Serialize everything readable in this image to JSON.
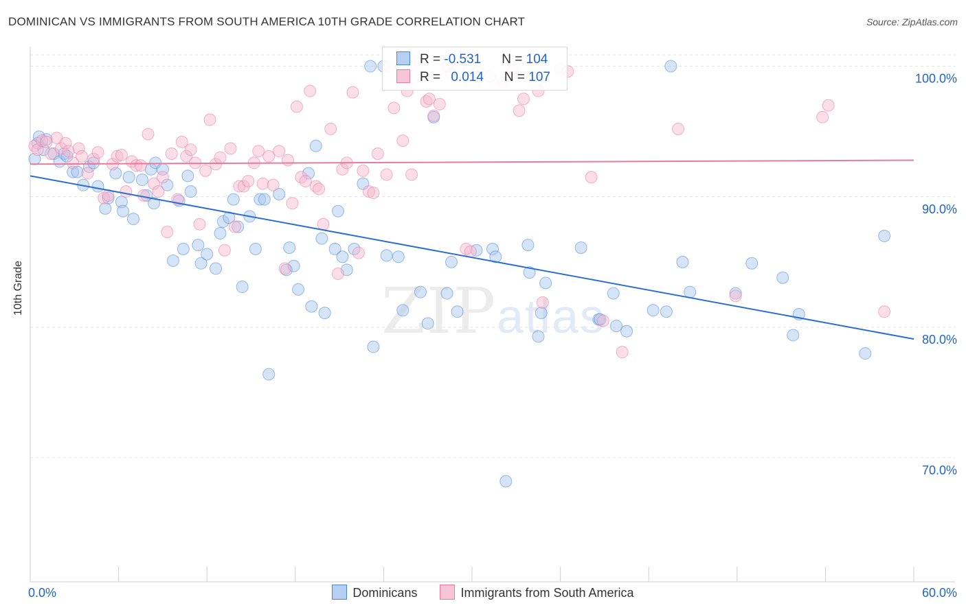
{
  "header": {
    "title": "DOMINICAN VS IMMIGRANTS FROM SOUTH AMERICA 10TH GRADE CORRELATION CHART",
    "source": "Source: ZipAtlas.com"
  },
  "watermark": {
    "zip": "ZIP",
    "atlas": "atlas"
  },
  "colors": {
    "dominicans": "#4a86d8",
    "immigrants": "#e87aa0",
    "dominicans_fill": "rgba(164,196,240,0.45)",
    "immigrants_fill": "rgba(246,182,204,0.45)",
    "value_text": "#1f64c8",
    "grid": "#e3e3e3"
  },
  "legend_top": {
    "rows": [
      {
        "r_label": "R = ",
        "r_value": "-0.531",
        "n_label": "N = ",
        "n_value": "104"
      },
      {
        "r_label": "R = ",
        "r_value": "0.014",
        "n_label": "N = ",
        "n_value": "107"
      }
    ]
  },
  "legend_bottom": {
    "items": [
      {
        "label": "Dominicans"
      },
      {
        "label": "Immigrants from South America"
      }
    ]
  },
  "chart_data": {
    "type": "scatter",
    "title": "DOMINICAN VS IMMIGRANTS FROM SOUTH AMERICA 10TH GRADE CORRELATION CHART",
    "xlabel": "",
    "ylabel": "10th Grade",
    "xlim": [
      0,
      60
    ],
    "ylim": [
      60.5,
      101.5
    ],
    "x_tick_labels": [
      {
        "value": 0,
        "label": "0.0%"
      },
      {
        "value": 60,
        "label": "60.0%"
      }
    ],
    "y_tick_labels": [
      {
        "value": 100,
        "label": "100.0%"
      },
      {
        "value": 90,
        "label": "90.0%"
      },
      {
        "value": 80,
        "label": "80.0%"
      },
      {
        "value": 70,
        "label": "70.0%"
      }
    ],
    "x_minor_ticks": [
      0,
      6,
      12,
      18,
      24,
      30,
      36,
      42,
      48,
      54,
      60
    ],
    "grid": true,
    "legend_position": "top-center",
    "series": [
      {
        "name": "Dominicans",
        "stats": {
          "R": -0.531,
          "N": 104
        },
        "trend": {
          "x": [
            0,
            60
          ],
          "y": [
            91.6,
            79.1
          ]
        },
        "points": [
          [
            0.3,
            92.9
          ],
          [
            0.5,
            94.1
          ],
          [
            0.6,
            94.6
          ],
          [
            0.9,
            93.6
          ],
          [
            1.1,
            94.4
          ],
          [
            1.6,
            93.3
          ],
          [
            2.0,
            92.7
          ],
          [
            2.3,
            93.3
          ],
          [
            2.5,
            93.1
          ],
          [
            2.9,
            91.9
          ],
          [
            3.2,
            91.9
          ],
          [
            3.6,
            90.9
          ],
          [
            4.0,
            92.3
          ],
          [
            4.3,
            92.6
          ],
          [
            4.6,
            90.8
          ],
          [
            5.1,
            89.1
          ],
          [
            5.3,
            89.9
          ],
          [
            5.8,
            91.8
          ],
          [
            6.2,
            89.6
          ],
          [
            6.3,
            88.9
          ],
          [
            6.7,
            91.5
          ],
          [
            7.0,
            88.3
          ],
          [
            7.6,
            91.3
          ],
          [
            7.9,
            90.1
          ],
          [
            8.2,
            92.1
          ],
          [
            8.4,
            89.5
          ],
          [
            8.5,
            92.6
          ],
          [
            9.0,
            92.1
          ],
          [
            9.3,
            90.9
          ],
          [
            9.7,
            85.1
          ],
          [
            10.1,
            89.7
          ],
          [
            10.4,
            86.0
          ],
          [
            10.7,
            91.6
          ],
          [
            10.9,
            90.4
          ],
          [
            11.4,
            86.3
          ],
          [
            11.6,
            84.9
          ],
          [
            12.0,
            85.6
          ],
          [
            12.6,
            84.5
          ],
          [
            12.9,
            87.2
          ],
          [
            13.1,
            88.1
          ],
          [
            13.5,
            88.4
          ],
          [
            13.8,
            89.8
          ],
          [
            14.1,
            87.7
          ],
          [
            14.4,
            83.1
          ],
          [
            14.9,
            88.5
          ],
          [
            15.3,
            86.0
          ],
          [
            15.6,
            89.8
          ],
          [
            15.9,
            89.8
          ],
          [
            16.2,
            76.4
          ],
          [
            16.9,
            90.2
          ],
          [
            17.4,
            84.4
          ],
          [
            17.6,
            86.1
          ],
          [
            17.9,
            84.7
          ],
          [
            18.2,
            82.9
          ],
          [
            18.9,
            91.8
          ],
          [
            19.1,
            81.6
          ],
          [
            19.4,
            93.9
          ],
          [
            19.8,
            86.8
          ],
          [
            20.0,
            81.1
          ],
          [
            20.7,
            86.0
          ],
          [
            20.9,
            88.9
          ],
          [
            21.2,
            85.4
          ],
          [
            21.5,
            84.4
          ],
          [
            22.0,
            86.0
          ],
          [
            22.6,
            91.0
          ],
          [
            23.1,
            100.0
          ],
          [
            23.3,
            78.5
          ],
          [
            24.0,
            100.0
          ],
          [
            24.2,
            85.5
          ],
          [
            25.0,
            85.4
          ],
          [
            25.3,
            81.3
          ],
          [
            26.5,
            82.7
          ],
          [
            27.0,
            80.3
          ],
          [
            27.4,
            96.1
          ],
          [
            28.3,
            82.6
          ],
          [
            28.6,
            85.0
          ],
          [
            29.0,
            81.2
          ],
          [
            30.3,
            85.9
          ],
          [
            31.4,
            86.0
          ],
          [
            31.6,
            85.4
          ],
          [
            32.3,
            68.2
          ],
          [
            33.8,
            86.3
          ],
          [
            33.9,
            84.2
          ],
          [
            34.5,
            79.3
          ],
          [
            34.7,
            81.1
          ],
          [
            35.0,
            83.4
          ],
          [
            37.4,
            86.1
          ],
          [
            38.6,
            80.6
          ],
          [
            38.7,
            80.6
          ],
          [
            39.6,
            82.6
          ],
          [
            39.8,
            80.1
          ],
          [
            40.5,
            79.7
          ],
          [
            42.3,
            81.3
          ],
          [
            43.2,
            81.2
          ],
          [
            43.5,
            100.0
          ],
          [
            44.3,
            85.0
          ],
          [
            44.8,
            82.7
          ],
          [
            47.9,
            82.6
          ],
          [
            49.0,
            84.9
          ],
          [
            51.1,
            83.8
          ],
          [
            51.8,
            79.4
          ],
          [
            52.2,
            81.0
          ],
          [
            56.7,
            78.0
          ],
          [
            58.0,
            87.0
          ]
        ]
      },
      {
        "name": "Immigrants from South America",
        "stats": {
          "R": 0.014,
          "N": 107
        },
        "trend": {
          "x": [
            0,
            60
          ],
          "y": [
            92.5,
            92.8
          ]
        },
        "points": [
          [
            0.3,
            93.9
          ],
          [
            0.5,
            93.6
          ],
          [
            0.8,
            94.3
          ],
          [
            1.1,
            94.2
          ],
          [
            1.4,
            93.3
          ],
          [
            1.8,
            94.5
          ],
          [
            2.1,
            93.7
          ],
          [
            2.4,
            94.1
          ],
          [
            2.6,
            93.5
          ],
          [
            2.9,
            92.6
          ],
          [
            3.3,
            93.7
          ],
          [
            3.5,
            93.1
          ],
          [
            3.9,
            91.8
          ],
          [
            4.3,
            92.9
          ],
          [
            4.6,
            93.4
          ],
          [
            5.0,
            89.9
          ],
          [
            5.3,
            90.1
          ],
          [
            5.6,
            92.5
          ],
          [
            5.9,
            93.1
          ],
          [
            6.2,
            93.2
          ],
          [
            6.5,
            90.4
          ],
          [
            6.9,
            92.7
          ],
          [
            7.2,
            92.4
          ],
          [
            7.5,
            92.4
          ],
          [
            7.7,
            90.1
          ],
          [
            8.0,
            94.8
          ],
          [
            8.4,
            91.0
          ],
          [
            8.7,
            90.4
          ],
          [
            9.0,
            91.5
          ],
          [
            9.3,
            87.3
          ],
          [
            9.6,
            93.3
          ],
          [
            10.0,
            89.8
          ],
          [
            10.3,
            94.2
          ],
          [
            10.6,
            93.1
          ],
          [
            10.9,
            93.6
          ],
          [
            11.2,
            92.6
          ],
          [
            11.5,
            87.9
          ],
          [
            11.9,
            92.0
          ],
          [
            12.2,
            95.9
          ],
          [
            12.6,
            92.5
          ],
          [
            12.9,
            93.0
          ],
          [
            13.2,
            85.9
          ],
          [
            13.6,
            93.7
          ],
          [
            13.9,
            87.7
          ],
          [
            14.2,
            90.8
          ],
          [
            14.5,
            90.8
          ],
          [
            14.8,
            91.2
          ],
          [
            15.2,
            92.6
          ],
          [
            15.5,
            93.5
          ],
          [
            15.8,
            91.0
          ],
          [
            16.2,
            93.1
          ],
          [
            16.5,
            90.9
          ],
          [
            16.9,
            93.5
          ],
          [
            17.3,
            84.5
          ],
          [
            17.5,
            92.8
          ],
          [
            17.8,
            89.5
          ],
          [
            18.1,
            96.9
          ],
          [
            18.4,
            91.5
          ],
          [
            18.7,
            91.2
          ],
          [
            19.0,
            98.1
          ],
          [
            19.4,
            90.8
          ],
          [
            19.6,
            90.6
          ],
          [
            19.9,
            87.9
          ],
          [
            20.4,
            95.2
          ],
          [
            20.9,
            84.1
          ],
          [
            21.2,
            92.1
          ],
          [
            21.5,
            92.6
          ],
          [
            21.9,
            98.0
          ],
          [
            22.3,
            85.7
          ],
          [
            22.6,
            92.0
          ],
          [
            23.0,
            90.4
          ],
          [
            23.3,
            90.3
          ],
          [
            23.6,
            93.3
          ],
          [
            24.2,
            91.7
          ],
          [
            24.4,
            100.0
          ],
          [
            24.7,
            96.8
          ],
          [
            25.3,
            94.3
          ],
          [
            25.6,
            98.1
          ],
          [
            25.9,
            91.7
          ],
          [
            26.4,
            100.0
          ],
          [
            26.9,
            97.3
          ],
          [
            27.1,
            97.5
          ],
          [
            27.4,
            96.2
          ],
          [
            27.8,
            97.1
          ],
          [
            28.3,
            100.0
          ],
          [
            28.6,
            99.4
          ],
          [
            29.1,
            99.9
          ],
          [
            29.6,
            86.0
          ],
          [
            29.9,
            85.8
          ],
          [
            30.4,
            99.6
          ],
          [
            31.2,
            99.2
          ],
          [
            32.1,
            98.8
          ],
          [
            32.8,
            99.7
          ],
          [
            33.2,
            96.6
          ],
          [
            33.5,
            97.5
          ],
          [
            34.5,
            98.1
          ],
          [
            34.8,
            81.9
          ],
          [
            36.0,
            99.8
          ],
          [
            36.5,
            99.6
          ],
          [
            38.1,
            91.5
          ],
          [
            38.9,
            80.5
          ],
          [
            40.2,
            78.1
          ],
          [
            44.0,
            95.2
          ],
          [
            47.9,
            82.4
          ],
          [
            53.8,
            96.1
          ],
          [
            54.2,
            97.0
          ],
          [
            58.0,
            81.2
          ]
        ]
      }
    ]
  }
}
